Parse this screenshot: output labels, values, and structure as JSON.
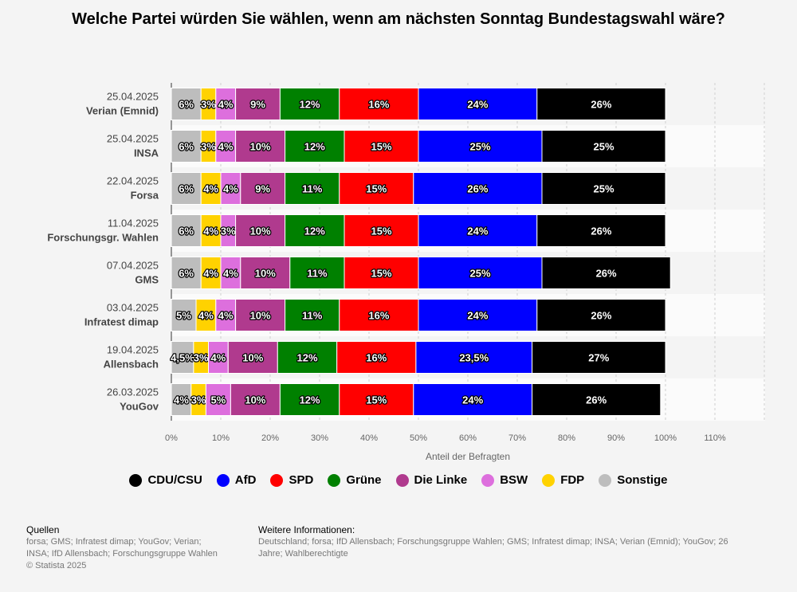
{
  "title": "Welche Partei würden Sie wählen, wenn am nächsten Sonntag Bundestagswahl wäre?",
  "legend_items": [
    {
      "label": "CDU/CSU",
      "color": "#000000"
    },
    {
      "label": "AfD",
      "color": "#0000ff"
    },
    {
      "label": "SPD",
      "color": "#ff0000"
    },
    {
      "label": "Grüne",
      "color": "#008000"
    },
    {
      "label": "Die Linke",
      "color": "#b03a8e"
    },
    {
      "label": "BSW",
      "color": "#dd6fdd"
    },
    {
      "label": "FDP",
      "color": "#ffd200"
    },
    {
      "label": "Sonstige",
      "color": "#bdbdbd"
    }
  ],
  "sources": {
    "heading": "Quellen",
    "line1": "forsa; GMS; Infratest dimap; YouGov; Verian;",
    "line2": "INSA; IfD Allensbach; Forschungsgruppe Wahlen",
    "copyright": "© Statista 2025"
  },
  "more_info": {
    "heading": "Weitere Informationen:",
    "line1": "Deutschland; forsa; IfD Allensbach; Forschungsgruppe Wahlen; GMS; Infratest dimap; INSA; Verian (Emnid); YouGov; 26",
    "line2": "Jahre; Wahlberechtigte"
  },
  "chart_data": {
    "type": "bar",
    "orientation": "horizontal",
    "stacked": true,
    "title": "Welche Partei würden Sie wählen, wenn am nächsten Sonntag Bundestagswahl wäre?",
    "xlabel": "Anteil der Befragten",
    "ylabel": "",
    "xlim": [
      0,
      120
    ],
    "x_ticks": [
      "0%",
      "10%",
      "20%",
      "30%",
      "40%",
      "50%",
      "60%",
      "70%",
      "80%",
      "90%",
      "100%",
      "110%"
    ],
    "grid": "vertical dashed",
    "legend_position": "bottom",
    "categories": [
      {
        "date": "25.04.2025",
        "institute": "Verian (Emnid)"
      },
      {
        "date": "25.04.2025",
        "institute": "INSA"
      },
      {
        "date": "22.04.2025",
        "institute": "Forsa"
      },
      {
        "date": "11.04.2025",
        "institute": "Forschungsgr. Wahlen"
      },
      {
        "date": "07.04.2025",
        "institute": "GMS"
      },
      {
        "date": "03.04.2025",
        "institute": "Infratest dimap"
      },
      {
        "date": "19.04.2025",
        "institute": "Allensbach"
      },
      {
        "date": "26.03.2025",
        "institute": "YouGov"
      }
    ],
    "series": [
      {
        "name": "Sonstige",
        "color": "#bdbdbd",
        "values": [
          6,
          6,
          6,
          6,
          6,
          5,
          4.5,
          4
        ],
        "labels": [
          "6%",
          "6%",
          "6%",
          "6%",
          "6%",
          "5%",
          "4,5%",
          "4%"
        ]
      },
      {
        "name": "FDP",
        "color": "#ffd200",
        "values": [
          3,
          3,
          4,
          4,
          4,
          4,
          3,
          3
        ],
        "labels": [
          "3%",
          "3%",
          "4%",
          "4%",
          "4%",
          "4%",
          "3%",
          "3%"
        ]
      },
      {
        "name": "BSW",
        "color": "#dd6fdd",
        "values": [
          4,
          4,
          4,
          3,
          4,
          4,
          4,
          5
        ],
        "labels": [
          "4%",
          "4%",
          "4%",
          "3%",
          "4%",
          "4%",
          "4%",
          "5%"
        ]
      },
      {
        "name": "Die Linke",
        "color": "#b03a8e",
        "values": [
          9,
          10,
          9,
          10,
          10,
          10,
          10,
          10
        ],
        "labels": [
          "9%",
          "10%",
          "9%",
          "10%",
          "10%",
          "10%",
          "10%",
          "10%"
        ]
      },
      {
        "name": "Grüne",
        "color": "#008000",
        "values": [
          12,
          12,
          11,
          12,
          11,
          11,
          12,
          12
        ],
        "labels": [
          "12%",
          "12%",
          "11%",
          "12%",
          "11%",
          "11%",
          "12%",
          "12%"
        ]
      },
      {
        "name": "SPD",
        "color": "#ff0000",
        "values": [
          16,
          15,
          15,
          15,
          15,
          16,
          16,
          15
        ],
        "labels": [
          "16%",
          "15%",
          "15%",
          "15%",
          "15%",
          "16%",
          "16%",
          "15%"
        ]
      },
      {
        "name": "AfD",
        "color": "#0000ff",
        "values": [
          24,
          25,
          26,
          24,
          25,
          24,
          23.5,
          24
        ],
        "labels": [
          "24%",
          "25%",
          "26%",
          "24%",
          "25%",
          "24%",
          "23,5%",
          "24%"
        ]
      },
      {
        "name": "CDU/CSU",
        "color": "#000000",
        "values": [
          26,
          25,
          25,
          26,
          26,
          26,
          27,
          26
        ],
        "labels": [
          "26%",
          "25%",
          "25%",
          "26%",
          "26%",
          "26%",
          "27%",
          "26%"
        ]
      }
    ]
  }
}
